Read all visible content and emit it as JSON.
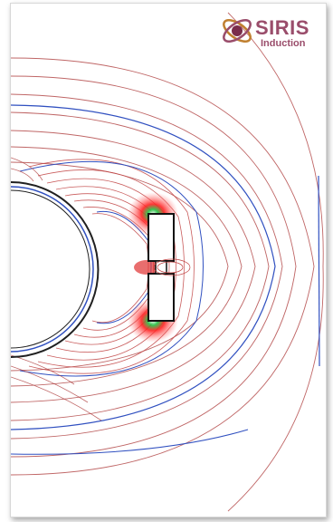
{
  "logo": {
    "title": "SIRIS",
    "subtitle": "Induction"
  },
  "colors": {
    "field_line_red": "#b04040",
    "field_line_blue": "#3050c0",
    "accent": "#9a4d6b"
  }
}
